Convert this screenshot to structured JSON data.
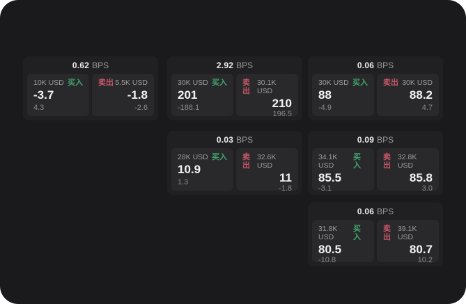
{
  "colors": {
    "page_bg": "#1a1a1c",
    "card_bg": "#202022",
    "panel_bg": "#29292b",
    "buy": "#42a46d",
    "sell": "#c75668",
    "label_gray": "#9c9c9c",
    "delta_gray": "#8a8a8a",
    "value_white": "#f2f2f2"
  },
  "labels": {
    "bps": "BPS",
    "buy": "买入",
    "sell": "卖出"
  },
  "cards": [
    {
      "col": 1,
      "row": 1,
      "bps": "0.62",
      "buy": {
        "amount": "10K USD",
        "value": "-3.7",
        "delta": "4.3"
      },
      "sell": {
        "amount": "5.5K USD",
        "value": "-1.8",
        "delta": "-2.6"
      }
    },
    {
      "col": 2,
      "row": 1,
      "bps": "2.92",
      "buy": {
        "amount": "30K USD",
        "value": "201",
        "delta": "-188.1"
      },
      "sell": {
        "amount": "30.1K USD",
        "value": "210",
        "delta": "196.5"
      }
    },
    {
      "col": 3,
      "row": 1,
      "bps": "0.06",
      "buy": {
        "amount": "30K USD",
        "value": "88",
        "delta": "-4.9"
      },
      "sell": {
        "amount": "30K USD",
        "value": "88.2",
        "delta": "4.7"
      }
    },
    {
      "col": 2,
      "row": 2,
      "bps": "0.03",
      "buy": {
        "amount": "28K USD",
        "value": "10.9",
        "delta": "1.3"
      },
      "sell": {
        "amount": "32.6K USD",
        "value": "11",
        "delta": "-1.8"
      }
    },
    {
      "col": 3,
      "row": 2,
      "bps": "0.09",
      "buy": {
        "amount": "34.1K USD",
        "value": "85.5",
        "delta": "-3.1"
      },
      "sell": {
        "amount": "32.8K USD",
        "value": "85.8",
        "delta": "3.0"
      }
    },
    {
      "col": 3,
      "row": 3,
      "bps": "0.06",
      "buy": {
        "amount": "31.8K USD",
        "value": "80.5",
        "delta": "-10.8"
      },
      "sell": {
        "amount": "39.1K USD",
        "value": "80.7",
        "delta": "10.2"
      }
    }
  ]
}
